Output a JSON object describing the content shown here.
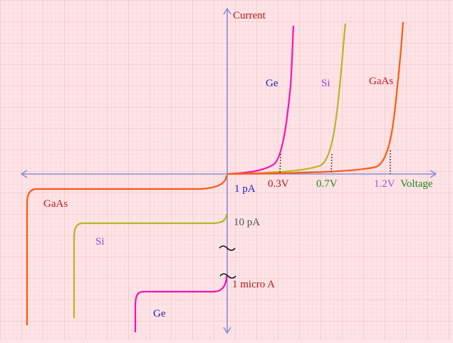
{
  "axes": {
    "y_label": "Current",
    "x_label": "Voltage"
  },
  "curve_labels": {
    "forward": [
      "Ge",
      "Si",
      "GaAs"
    ],
    "reverse": [
      "GaAs",
      "Si",
      "Ge"
    ]
  },
  "thresholds": [
    "0.3V",
    "0.7V",
    "1.2V"
  ],
  "reverse_currents": [
    "1 pA",
    "10 pA",
    "1 micro A"
  ],
  "colors": {
    "background": "#fde4e6",
    "grid": "#f2b8c4",
    "axis": "#8c8cd8",
    "ge": "#ff0fb3",
    "si": "#b3b824",
    "gaas": "#ff5a10",
    "threshold_line": "#222222",
    "label_dark": "#1f1fb8",
    "label_ge": "#1f1fb8",
    "label_si": "#a040e0",
    "label_gaas": "#c41818",
    "label_current": "#b01818",
    "label_voltage": "#1a8a1a",
    "label_03": "#b01818",
    "label_07": "#1a8a1a",
    "label_12": "#9060e0",
    "label_gray": "#555555"
  },
  "chart_data": {
    "type": "line",
    "xlabel": "Voltage",
    "ylabel": "Current",
    "series": [
      {
        "name": "Ge",
        "forward_threshold": "0.3V",
        "reverse_saturation": "1 micro A"
      },
      {
        "name": "Si",
        "forward_threshold": "0.7V",
        "reverse_saturation": "10 pA"
      },
      {
        "name": "GaAs",
        "forward_threshold": "1.2V",
        "reverse_saturation": "1 pA"
      }
    ]
  }
}
